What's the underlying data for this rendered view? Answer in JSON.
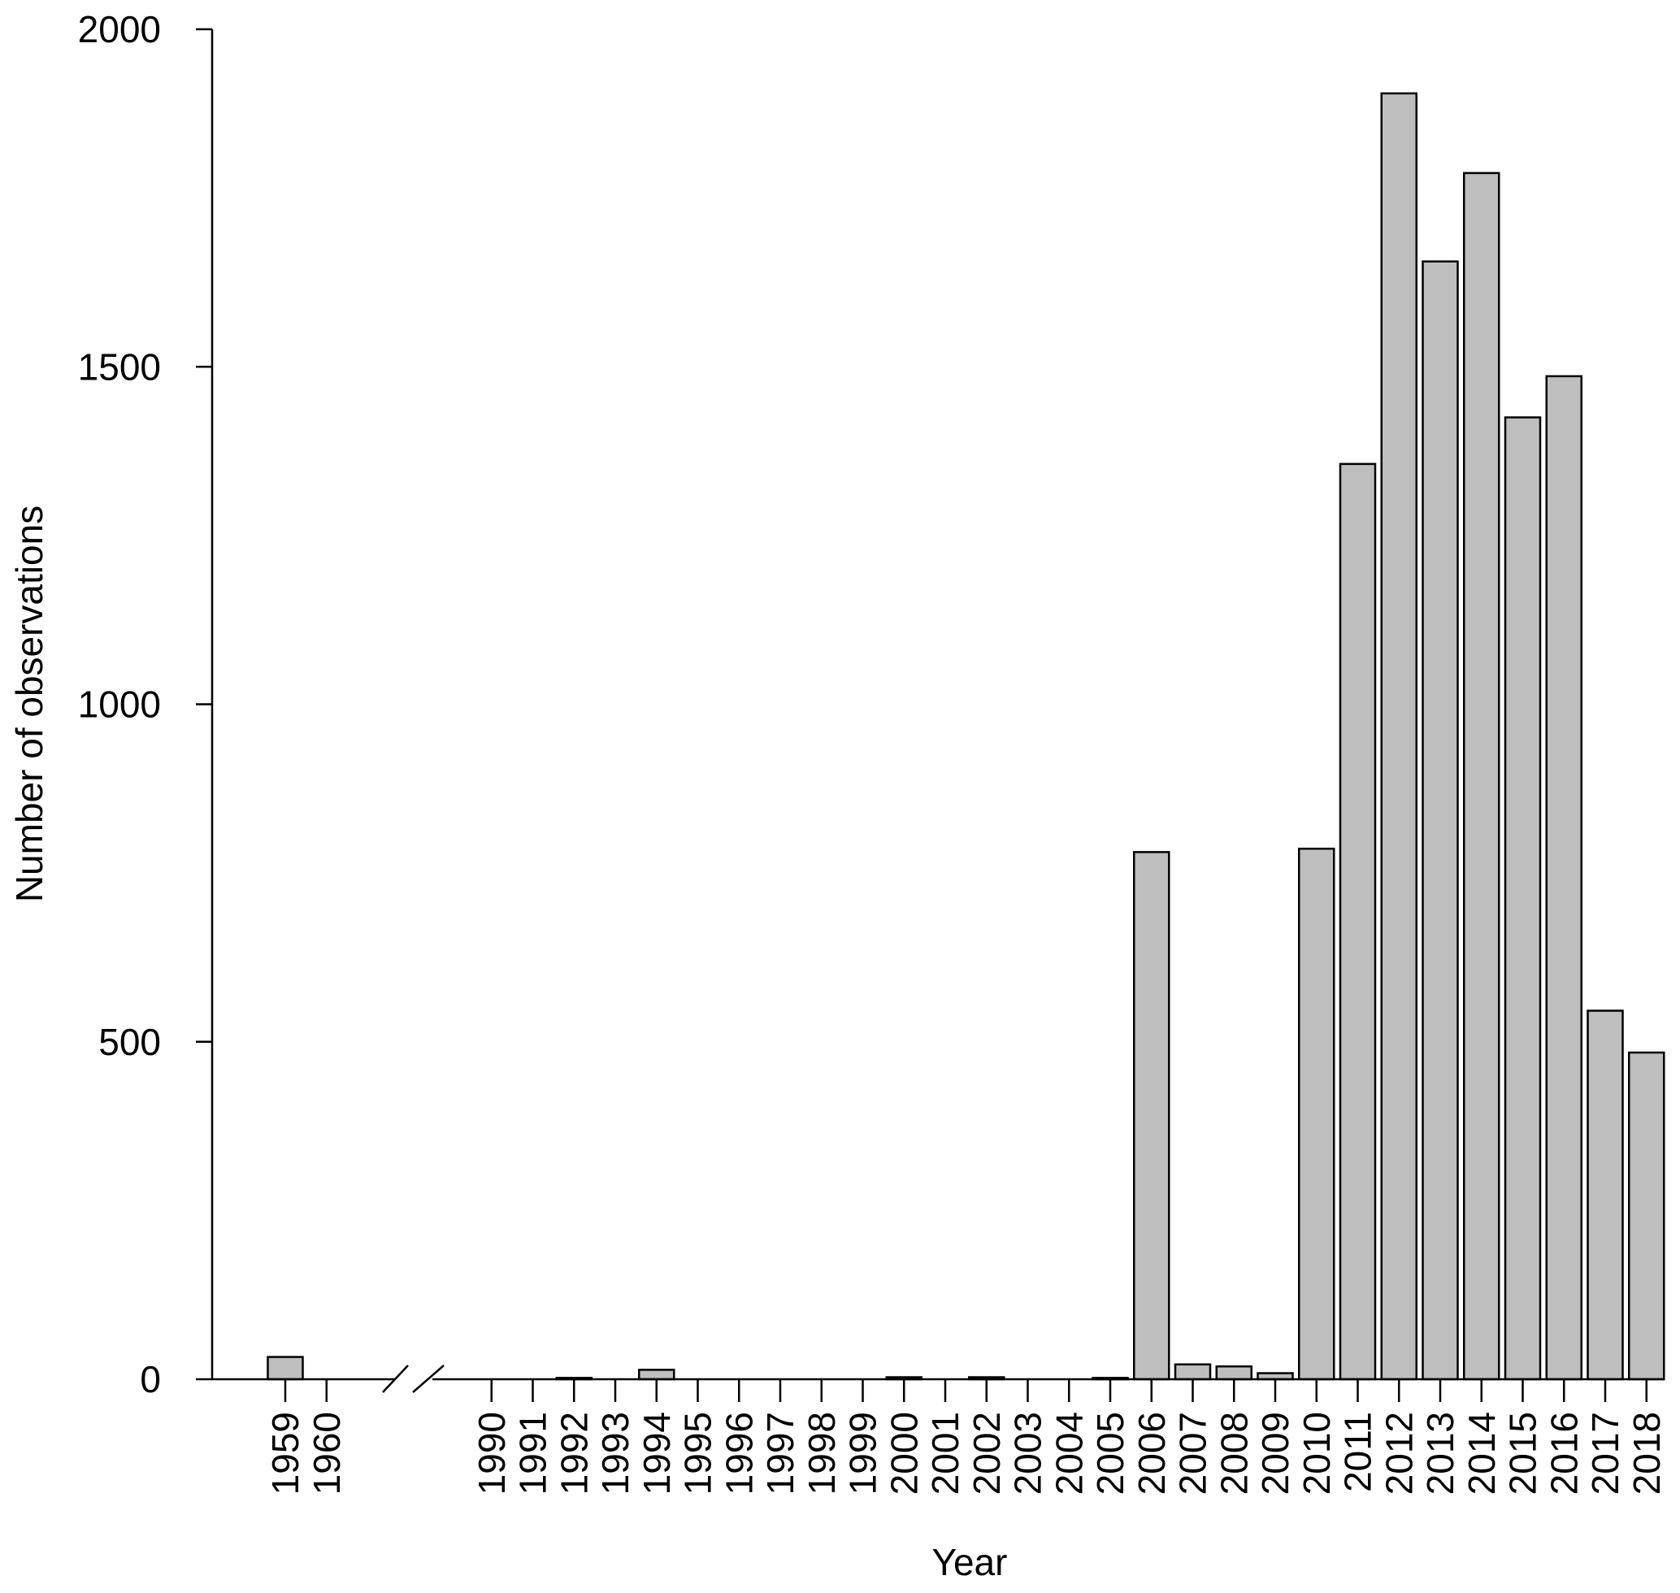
{
  "chart_data": {
    "type": "bar",
    "title": "",
    "xlabel": "Year",
    "ylabel": "Number of observations",
    "ylim": [
      0,
      2000
    ],
    "yticks": [
      0,
      500,
      1000,
      1500,
      2000
    ],
    "axis_break": "between 1960 and 1990",
    "bar_color": "#bebebe",
    "categories": [
      "1959",
      "1960",
      "1990",
      "1991",
      "1992",
      "1993",
      "1994",
      "1995",
      "1996",
      "1997",
      "1998",
      "1999",
      "2000",
      "2001",
      "2002",
      "2003",
      "2004",
      "2005",
      "2006",
      "2007",
      "2008",
      "2009",
      "2010",
      "2011",
      "2012",
      "2013",
      "2014",
      "2015",
      "2016",
      "2017",
      "2018"
    ],
    "values": [
      33,
      0,
      0,
      0,
      2,
      0,
      14,
      0,
      0,
      0,
      0,
      0,
      3,
      0,
      3,
      0,
      0,
      2,
      781,
      22,
      19,
      9,
      786,
      1356,
      1905,
      1656,
      1787,
      1425,
      1486,
      546,
      484
    ]
  }
}
